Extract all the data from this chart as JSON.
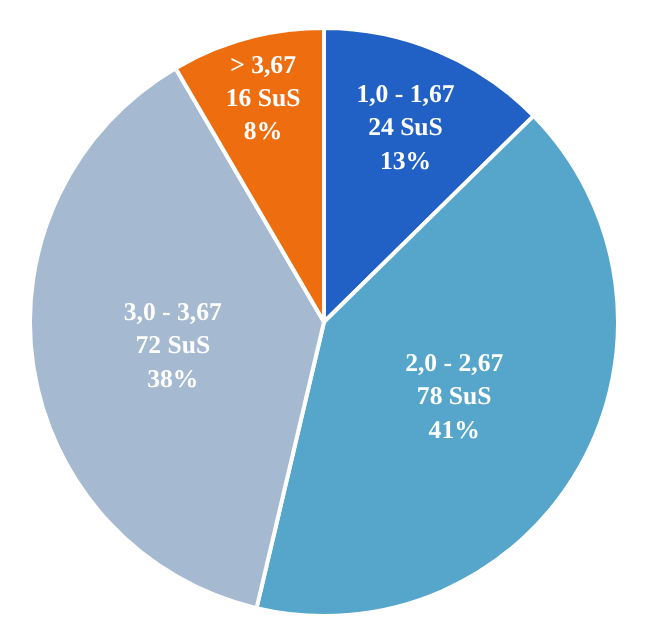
{
  "chart_data": {
    "type": "pie",
    "categories": [
      "1,0 - 1,67",
      "2,0 - 2,67",
      "3,0 - 3,67",
      "> 3,67"
    ],
    "values": [
      24,
      78,
      72,
      16
    ],
    "value_labels": [
      "24 SuS\n13%",
      "78 SuS\n41%",
      "72 SuS\n38%",
      "16 SuS\n8%"
    ],
    "colors": [
      "#2160c4",
      "#56a5cb",
      "#a5b9d1",
      "#ed6d0f"
    ],
    "legend": false
  }
}
